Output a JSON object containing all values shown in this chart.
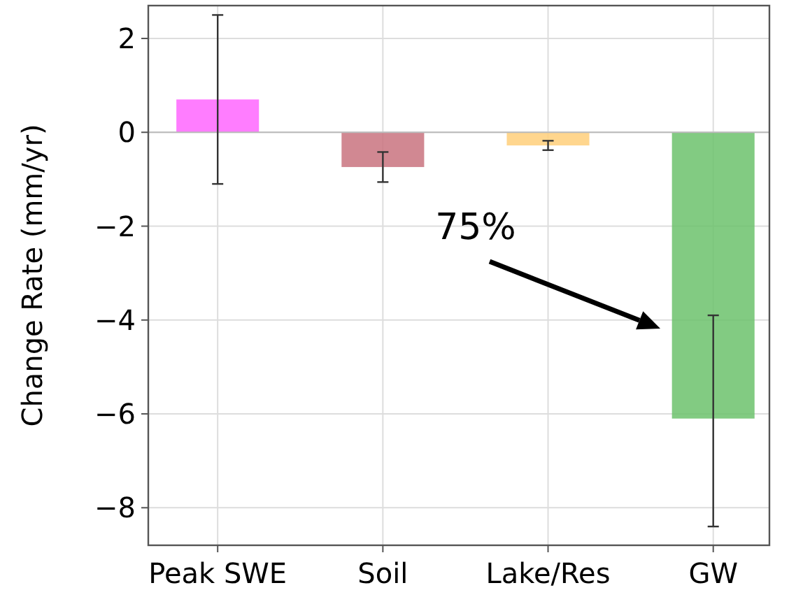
{
  "chart_data": {
    "type": "bar",
    "ylabel": "Change Rate (mm/yr)",
    "categories": [
      "Peak SWE",
      "Soil",
      "Lake/Res",
      "GW"
    ],
    "values": [
      0.7,
      -0.74,
      -0.28,
      -6.1
    ],
    "errors": [
      1.8,
      0.32,
      0.1,
      [
        -8.4,
        -3.9
      ]
    ],
    "colors": [
      "#ff66ff",
      "#c9737f",
      "#ffcf7a",
      "#6cc26c"
    ],
    "ylim": [
      -8.8,
      2.7
    ],
    "yticks": [
      {
        "value": 2,
        "label": "2"
      },
      {
        "value": 0,
        "label": "0"
      },
      {
        "value": -2,
        "label": "−2"
      },
      {
        "value": -4,
        "label": "−4"
      },
      {
        "value": -6,
        "label": "−6"
      },
      {
        "value": -8,
        "label": "−8"
      }
    ],
    "grid": true,
    "annotations": [
      "75%"
    ]
  }
}
